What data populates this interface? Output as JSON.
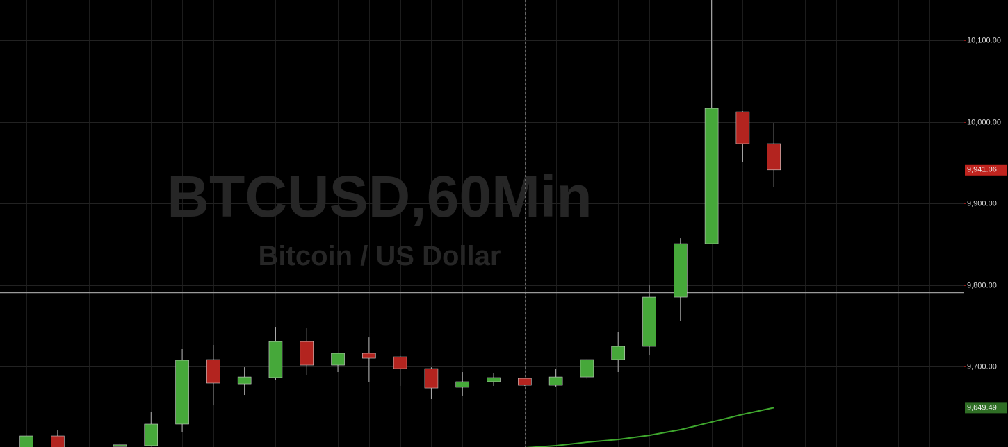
{
  "chart_data": {
    "type": "candlestick",
    "title": "BTCUSD,60Min",
    "subtitle": "Bitcoin / US Dollar",
    "x": [
      0,
      1,
      3,
      4,
      5,
      6,
      7,
      8,
      9,
      10,
      11,
      12,
      13,
      14,
      15,
      16,
      17,
      18,
      19,
      20,
      21,
      22,
      23,
      24
    ],
    "open": [
      9600,
      9614.9,
      9602,
      9603,
      9629.4,
      9708.5,
      9678.7,
      9686.4,
      9730.6,
      9701.7,
      9716.2,
      9711.9,
      9697.4,
      9674.5,
      9681.3,
      9685.5,
      9677,
      9687.2,
      9708.5,
      9724.7,
      9785.1,
      9850.6,
      10012.3,
      9973.2
    ],
    "high": [
      9615,
      9621.7,
      9606.4,
      9644.7,
      9721.3,
      9726.4,
      9699.1,
      9748.5,
      9746.8,
      9717,
      9735.7,
      9713,
      9699,
      9693.2,
      9692.3,
      9686,
      9696.6,
      9709,
      9742.6,
      9800.4,
      9857.4,
      10150,
      10013,
      9998.7
    ],
    "low": [
      9598,
      9598,
      9602,
      9602,
      9620,
      9652.3,
      9665.1,
      9683,
      9689.8,
      9693.2,
      9681.3,
      9676.2,
      9660,
      9664.3,
      9676.2,
      9676.2,
      9675.3,
      9684.7,
      9693.2,
      9713.6,
      9756.2,
      9850,
      9951.1,
      9919.6
    ],
    "close": [
      9614.9,
      9600,
      9604,
      9629.4,
      9707.7,
      9679.6,
      9687.2,
      9730.6,
      9701.7,
      9716.2,
      9710.2,
      9697.4,
      9673.6,
      9681.3,
      9686.4,
      9677,
      9687.2,
      9708.5,
      9724.7,
      9785.1,
      9850.6,
      10016.6,
      9973.2,
      9941.06
    ],
    "up_color": "#46a83a",
    "down_color": "#b3241f",
    "ma": {
      "x": [
        16,
        17,
        18,
        19,
        20,
        21,
        22,
        23,
        24
      ],
      "values": [
        9600.4,
        9603,
        9607.2,
        9610.6,
        9615.7,
        9622.6,
        9631.9,
        9641.3,
        9649.49
      ],
      "color": "#3fa82e"
    },
    "hline": 9791.1,
    "crosshair_x": 16,
    "xlim": [
      -0.85,
      30.09
    ],
    "ylim": [
      9601.3,
      10149.4
    ],
    "yticks": [
      {
        "value": 9700,
        "label": "9,700.00"
      },
      {
        "value": 9800,
        "label": "9,800.00"
      },
      {
        "value": 9900,
        "label": "9,900.00"
      },
      {
        "value": 10000,
        "label": "10,000.00"
      },
      {
        "value": 10100,
        "label": "10,100.00"
      }
    ],
    "markers": [
      {
        "value": 9941.06,
        "label": "9,941.06",
        "color": "#c0241e"
      },
      {
        "value": 9649.49,
        "label": "9,649.49",
        "color": "#2f6e25"
      }
    ],
    "grid": true
  }
}
